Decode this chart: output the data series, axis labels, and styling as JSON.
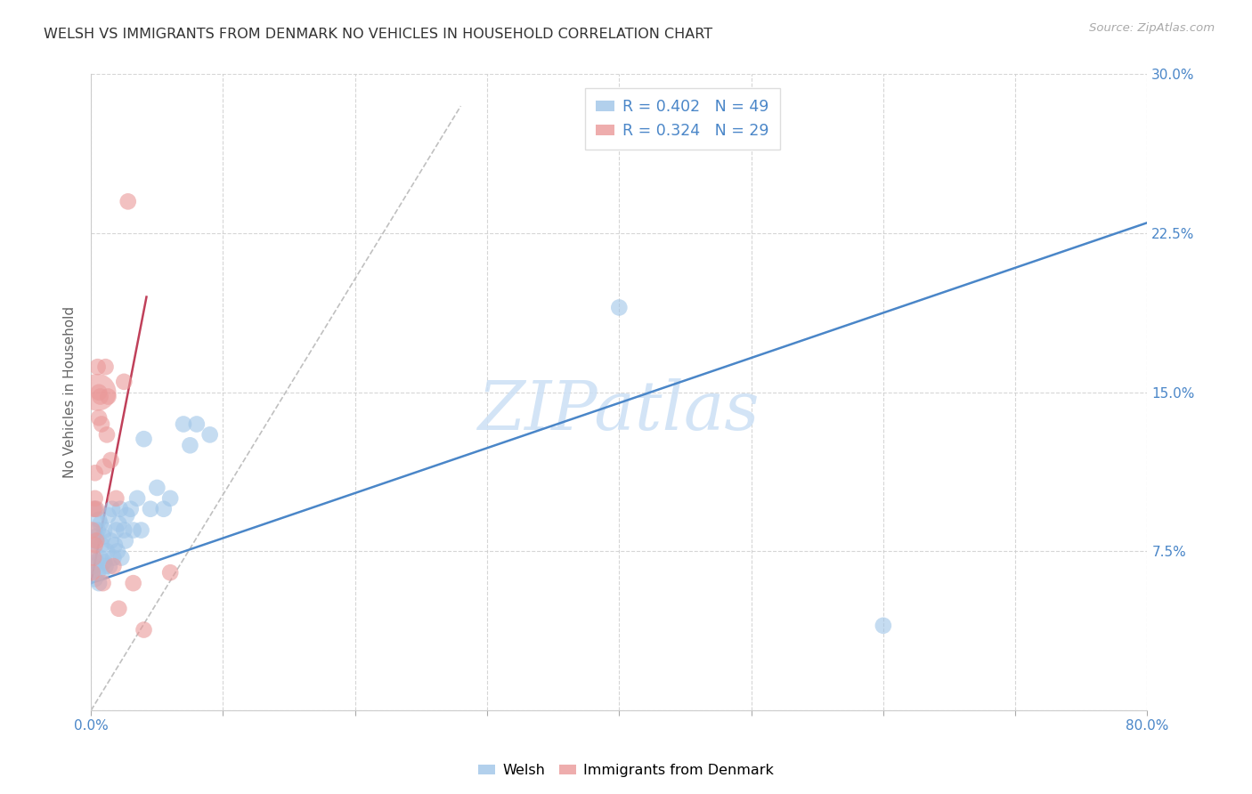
{
  "title": "WELSH VS IMMIGRANTS FROM DENMARK NO VEHICLES IN HOUSEHOLD CORRELATION CHART",
  "source": "Source: ZipAtlas.com",
  "ylabel": "No Vehicles in Household",
  "xlim": [
    0.0,
    0.8
  ],
  "ylim": [
    0.0,
    0.3
  ],
  "xticks": [
    0.0,
    0.1,
    0.2,
    0.3,
    0.4,
    0.5,
    0.6,
    0.7,
    0.8
  ],
  "yticks": [
    0.0,
    0.075,
    0.15,
    0.225,
    0.3
  ],
  "welsh_R": 0.402,
  "welsh_N": 49,
  "denmark_R": 0.324,
  "denmark_N": 29,
  "blue_color": "#9fc5e8",
  "pink_color": "#ea9999",
  "trendline_blue": "#4a86c8",
  "trendline_pink": "#c0405a",
  "watermark": "ZIPatlas",
  "blue_trendline_x": [
    0.0,
    0.8
  ],
  "blue_trendline_y": [
    0.06,
    0.23
  ],
  "pink_trendline_x": [
    0.0,
    0.042
  ],
  "pink_trendline_y": [
    0.06,
    0.195
  ],
  "gray_trendline_x": [
    0.0,
    0.28
  ],
  "gray_trendline_y": [
    0.0,
    0.285
  ],
  "background_color": "#ffffff",
  "grid_color": "#cccccc",
  "welsh_x": [
    0.001,
    0.002,
    0.002,
    0.003,
    0.003,
    0.004,
    0.004,
    0.005,
    0.005,
    0.006,
    0.006,
    0.007,
    0.007,
    0.008,
    0.008,
    0.009,
    0.01,
    0.01,
    0.011,
    0.012,
    0.013,
    0.014,
    0.015,
    0.016,
    0.017,
    0.018,
    0.019,
    0.02,
    0.021,
    0.022,
    0.023,
    0.025,
    0.026,
    0.027,
    0.03,
    0.032,
    0.035,
    0.038,
    0.04,
    0.045,
    0.05,
    0.055,
    0.06,
    0.07,
    0.075,
    0.08,
    0.09,
    0.4,
    0.6
  ],
  "welsh_y": [
    0.075,
    0.068,
    0.08,
    0.062,
    0.095,
    0.07,
    0.082,
    0.065,
    0.085,
    0.06,
    0.09,
    0.072,
    0.088,
    0.065,
    0.078,
    0.082,
    0.07,
    0.085,
    0.068,
    0.075,
    0.092,
    0.068,
    0.08,
    0.095,
    0.072,
    0.078,
    0.085,
    0.075,
    0.088,
    0.095,
    0.072,
    0.085,
    0.08,
    0.092,
    0.095,
    0.085,
    0.1,
    0.085,
    0.128,
    0.095,
    0.105,
    0.095,
    0.1,
    0.135,
    0.125,
    0.135,
    0.13,
    0.19,
    0.04
  ],
  "welsh_size_base": 180,
  "denmark_x": [
    0.001,
    0.001,
    0.002,
    0.002,
    0.003,
    0.003,
    0.003,
    0.004,
    0.004,
    0.005,
    0.005,
    0.006,
    0.006,
    0.007,
    0.008,
    0.009,
    0.01,
    0.011,
    0.012,
    0.013,
    0.015,
    0.017,
    0.019,
    0.021,
    0.025,
    0.028,
    0.032,
    0.04,
    0.06
  ],
  "denmark_y": [
    0.065,
    0.085,
    0.072,
    0.095,
    0.078,
    0.1,
    0.112,
    0.08,
    0.095,
    0.15,
    0.162,
    0.138,
    0.15,
    0.148,
    0.135,
    0.06,
    0.115,
    0.162,
    0.13,
    0.148,
    0.118,
    0.068,
    0.1,
    0.048,
    0.155,
    0.24,
    0.06,
    0.038,
    0.065
  ],
  "denmark_size_large": 900,
  "denmark_size_base": 180,
  "denmark_large_idx": 9
}
